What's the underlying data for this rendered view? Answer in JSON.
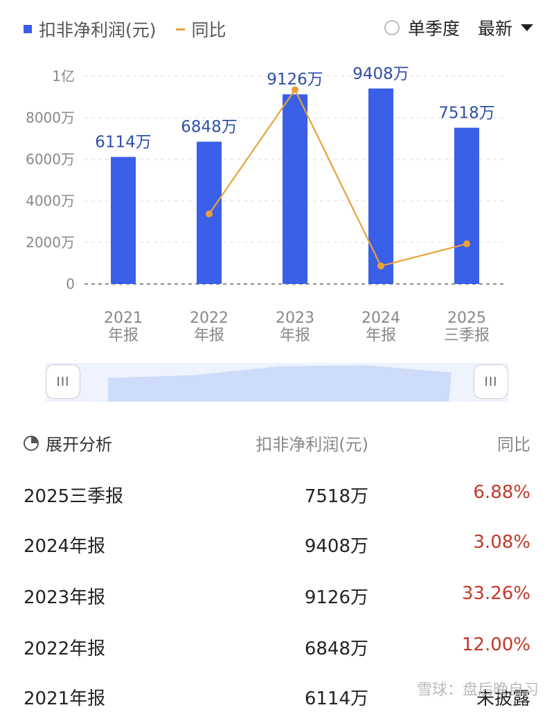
{
  "legend": {
    "bar_label": "扣非净利润(元)",
    "line_label": "同比"
  },
  "controls": {
    "quarter_label": "单季度",
    "sort_label": "最新"
  },
  "chart_data": {
    "type": "bar",
    "categories": [
      [
        "2021",
        "年报"
      ],
      [
        "2022",
        "年报"
      ],
      [
        "2023",
        "年报"
      ],
      [
        "2024",
        "年报"
      ],
      [
        "2025",
        "三季报"
      ]
    ],
    "series": [
      {
        "name": "扣非净利润(元)",
        "type": "bar",
        "values": [
          6114,
          6848,
          9126,
          9408,
          7518
        ],
        "unit": "万",
        "color": "#3a5fe8",
        "labels": [
          "6114万",
          "6848万",
          "9126万",
          "9408万",
          "7518万"
        ]
      },
      {
        "name": "同比",
        "type": "line",
        "values": [
          null,
          12.0,
          33.26,
          3.08,
          6.88
        ],
        "unit": "%",
        "color": "#e8a23a"
      }
    ],
    "yticks": [
      "0",
      "2000万",
      "4000万",
      "6000万",
      "8000万",
      "1亿"
    ],
    "ylim": [
      0,
      10000
    ],
    "grid": true
  },
  "slider": {
    "handle_left": "III",
    "handle_right": "III"
  },
  "table": {
    "header": {
      "analysis": "展开分析",
      "profit": "扣非净利润(元)",
      "yoy": "同比"
    },
    "rows": [
      {
        "period": "2025三季报",
        "profit": "7518万",
        "yoy": "6.88%"
      },
      {
        "period": "2024年报",
        "profit": "9408万",
        "yoy": "3.08%"
      },
      {
        "period": "2023年报",
        "profit": "9126万",
        "yoy": "33.26%"
      },
      {
        "period": "2022年报",
        "profit": "6848万",
        "yoy": "12.00%"
      },
      {
        "period": "2021年报",
        "profit": "6114万",
        "yoy": "未披露"
      }
    ]
  },
  "watermark": "雪球：盘后晚自习"
}
